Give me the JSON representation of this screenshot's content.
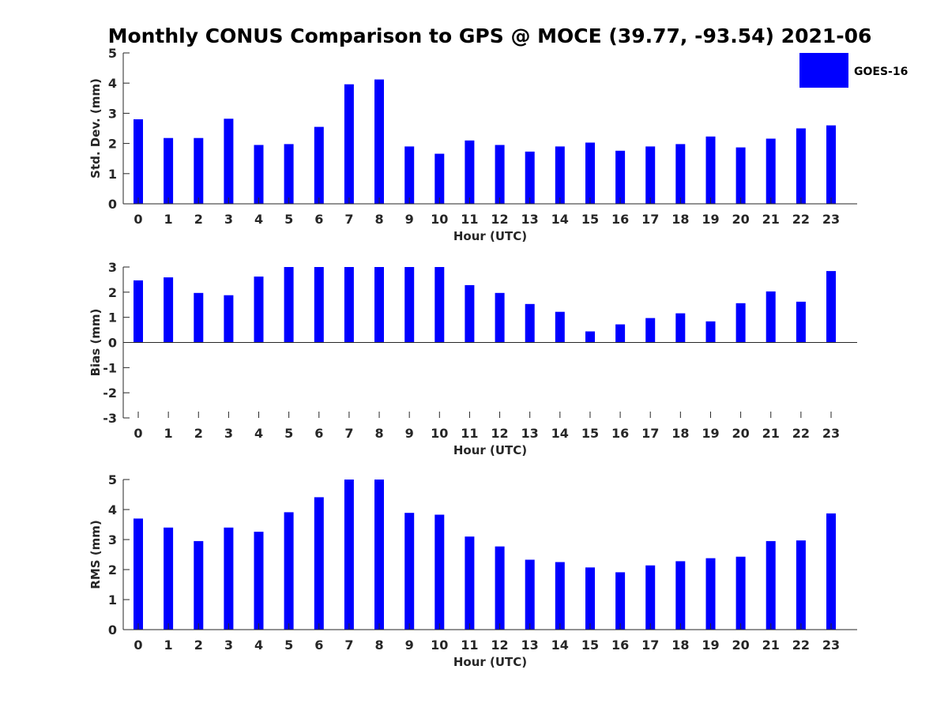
{
  "title": "Monthly CONUS Comparison to GPS @ MOCE (39.77, -93.54) 2021-06",
  "legend": {
    "label": "GOES-16",
    "position": "top-right"
  },
  "colors": {
    "bar": "#0000ff",
    "axis": "#262626",
    "background": "#ffffff"
  },
  "chart_data": [
    {
      "type": "bar",
      "xlabel": "Hour (UTC)",
      "ylabel": "Std. Dev. (mm)",
      "ylim": [
        0,
        5
      ],
      "yticks": [
        0,
        1,
        2,
        3,
        4,
        5
      ],
      "categories": [
        "0",
        "1",
        "2",
        "3",
        "4",
        "5",
        "6",
        "7",
        "8",
        "9",
        "10",
        "11",
        "12",
        "13",
        "14",
        "15",
        "16",
        "17",
        "18",
        "19",
        "20",
        "21",
        "22",
        "23"
      ],
      "series": [
        {
          "name": "GOES-16",
          "values": [
            2.8,
            2.18,
            2.18,
            2.82,
            1.95,
            1.98,
            2.55,
            3.96,
            4.12,
            1.9,
            1.66,
            2.1,
            1.95,
            1.73,
            1.9,
            2.03,
            1.76,
            1.9,
            1.98,
            2.23,
            1.87,
            2.16,
            2.5,
            2.6
          ]
        }
      ],
      "grid": false
    },
    {
      "type": "bar",
      "xlabel": "Hour (UTC)",
      "ylabel": "Bias (mm)",
      "ylim": [
        -3,
        3
      ],
      "yticks": [
        -3,
        -2,
        -1,
        0,
        1,
        2,
        3
      ],
      "categories": [
        "0",
        "1",
        "2",
        "3",
        "4",
        "5",
        "6",
        "7",
        "8",
        "9",
        "10",
        "11",
        "12",
        "13",
        "14",
        "15",
        "16",
        "17",
        "18",
        "19",
        "20",
        "21",
        "22",
        "23"
      ],
      "series": [
        {
          "name": "GOES-16",
          "values": [
            2.47,
            2.59,
            1.97,
            1.88,
            2.62,
            3.0,
            3.0,
            3.0,
            3.0,
            3.0,
            3.0,
            2.28,
            1.97,
            1.53,
            1.22,
            0.44,
            0.72,
            0.97,
            1.16,
            0.84,
            1.56,
            2.03,
            1.62,
            2.84
          ]
        }
      ],
      "grid": false
    },
    {
      "type": "bar",
      "xlabel": "Hour (UTC)",
      "ylabel": "RMS (mm)",
      "ylim": [
        0,
        5
      ],
      "yticks": [
        0,
        1,
        2,
        3,
        4,
        5
      ],
      "categories": [
        "0",
        "1",
        "2",
        "3",
        "4",
        "5",
        "6",
        "7",
        "8",
        "9",
        "10",
        "11",
        "12",
        "13",
        "14",
        "15",
        "16",
        "17",
        "18",
        "19",
        "20",
        "21",
        "22",
        "23"
      ],
      "series": [
        {
          "name": "GOES-16",
          "values": [
            3.7,
            3.4,
            2.95,
            3.4,
            3.26,
            3.91,
            4.41,
            5.0,
            5.0,
            3.89,
            3.83,
            3.1,
            2.77,
            2.33,
            2.25,
            2.07,
            1.91,
            2.14,
            2.28,
            2.38,
            2.43,
            2.95,
            2.97,
            3.87
          ]
        }
      ],
      "grid": false
    }
  ]
}
